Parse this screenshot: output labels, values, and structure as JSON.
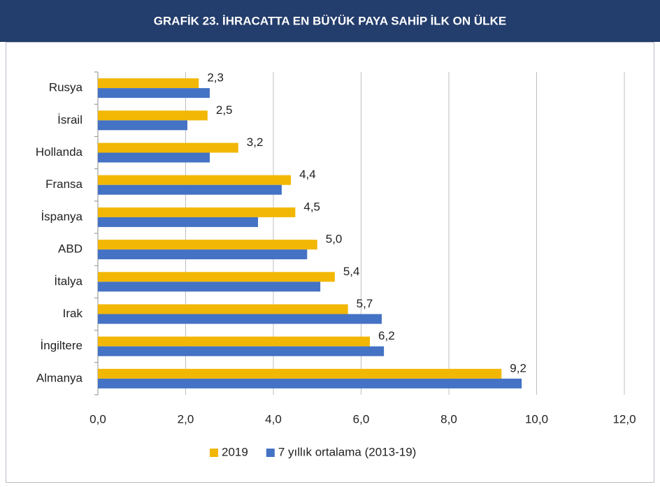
{
  "chart_data": {
    "type": "bar",
    "orientation": "horizontal",
    "title": "GRAFİK 23. İHRACATTA EN BÜYÜK PAYA SAHİP İLK ON ÜLKE",
    "categories": [
      "Rusya",
      "İsrail",
      "Hollanda",
      "Fransa",
      "İspanya",
      "ABD",
      "İtalya",
      "Irak",
      "İngiltere",
      "Almanya"
    ],
    "series": [
      {
        "name": "2019",
        "color": "#f2b705",
        "values": [
          2.3,
          2.5,
          3.2,
          4.4,
          4.5,
          5.0,
          5.4,
          5.7,
          6.2,
          9.2
        ],
        "value_labels": [
          "2,3",
          "2,5",
          "3,2",
          "4,4",
          "4,5",
          "5,0",
          "5,4",
          "5,7",
          "6,2",
          "9,2"
        ]
      },
      {
        "name": "7 yıllık ortalama (2013-19)",
        "color": "#4472c4",
        "values": [
          2.55,
          2.04,
          2.55,
          4.19,
          3.65,
          4.77,
          5.07,
          6.47,
          6.52,
          9.66
        ]
      }
    ],
    "xlim": [
      0,
      12
    ],
    "xticks": [
      {
        "value": 0,
        "label": "0,0"
      },
      {
        "value": 2,
        "label": "2,0"
      },
      {
        "value": 4,
        "label": "4,0"
      },
      {
        "value": 6,
        "label": "6,0"
      },
      {
        "value": 8,
        "label": "8,0"
      },
      {
        "value": 10,
        "label": "10,0"
      },
      {
        "value": 12,
        "label": "12,0"
      }
    ],
    "grid": true,
    "legend": "bottom"
  }
}
